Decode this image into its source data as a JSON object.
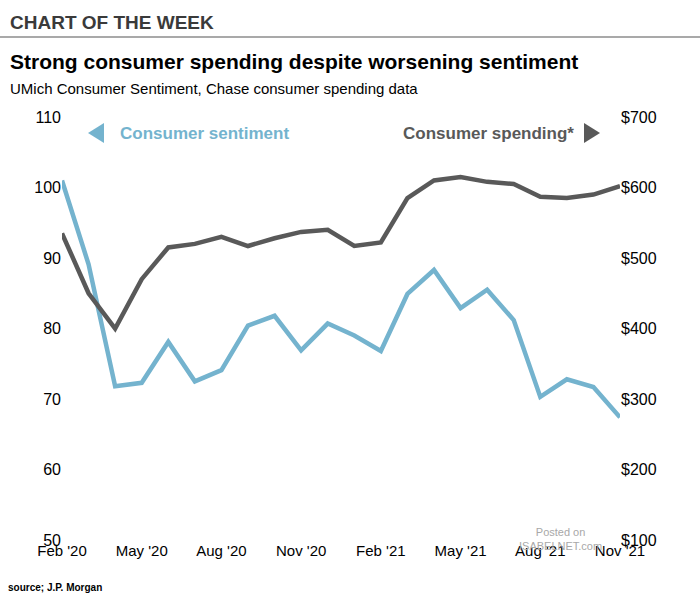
{
  "chart_data": {
    "type": "line",
    "header": "CHART OF THE WEEK",
    "title": "Strong consumer spending despite worsening sentiment",
    "subtitle": "UMich Consumer Sentiment, Chase consumer spending data",
    "source": "source; J.P. Morgan",
    "watermark": [
      "Posted on",
      "ISABELNET.com"
    ],
    "categories": [
      "Feb '20",
      null,
      null,
      "May '20",
      null,
      null,
      "Aug '20",
      null,
      null,
      "Nov '20",
      null,
      null,
      "Feb '21",
      null,
      null,
      "May '21",
      null,
      null,
      "Aug '21",
      null,
      null,
      "Nov '21"
    ],
    "series": [
      {
        "name": "Consumer sentiment",
        "color": "#74b3ce",
        "values": [
          101.0,
          89.1,
          71.8,
          72.3,
          78.1,
          72.5,
          74.1,
          80.4,
          81.8,
          76.9,
          80.7,
          79.0,
          76.8,
          84.9,
          88.3,
          82.9,
          85.5,
          81.2,
          70.3,
          72.8,
          71.7,
          67.4
        ]
      },
      {
        "name": "Consumer spending*",
        "color": "#595959",
        "axis": "y2",
        "values": [
          535,
          450,
          400,
          470,
          515,
          520,
          530,
          517,
          528,
          537,
          540,
          517,
          522,
          585,
          610,
          615,
          608,
          605,
          587,
          585,
          590,
          602
        ]
      }
    ],
    "ylim": [
      50,
      110
    ],
    "yticks": [
      50,
      60,
      70,
      80,
      90,
      100,
      110
    ],
    "y2lim": [
      100,
      700
    ],
    "y2ticks": [
      {
        "value": 100,
        "label": "$100"
      },
      {
        "value": 200,
        "label": "$200"
      },
      {
        "value": 300,
        "label": "$300"
      },
      {
        "value": 400,
        "label": "$400"
      },
      {
        "value": 500,
        "label": "$500"
      },
      {
        "value": 600,
        "label": "$600"
      },
      {
        "value": 700,
        "label": "$700"
      }
    ],
    "grid": false
  }
}
